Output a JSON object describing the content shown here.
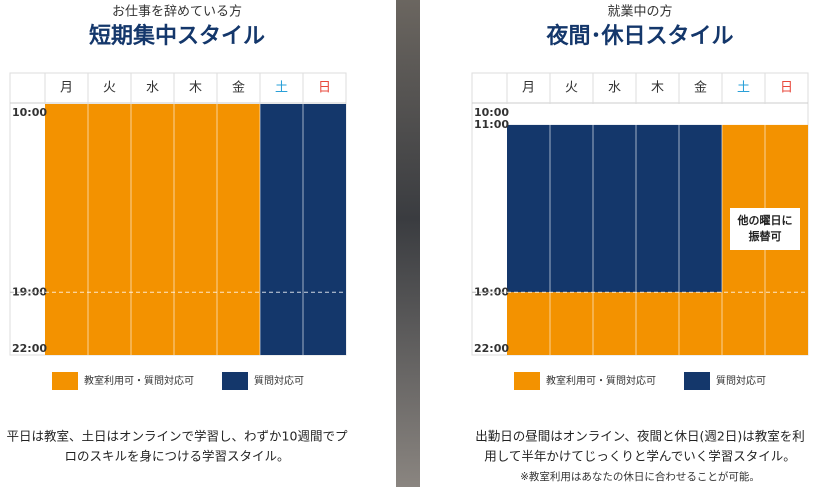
{
  "legend": [
    {
      "label": "教室利用可・質問対応可",
      "color": "#f39200"
    },
    {
      "label": "質問対応可",
      "color": "#14376b"
    }
  ],
  "panels": [
    {
      "subtitle": "お仕事を辞めている方",
      "title": "短期集中スタイル",
      "times": [
        "10:00",
        "19:00",
        "22:00"
      ],
      "dashed": "19:00",
      "columns": [
        {
          "day": "月",
          "segments": [
            {
              "from": "10:00",
              "to": "22:00",
              "type": 0
            }
          ]
        },
        {
          "day": "火",
          "segments": [
            {
              "from": "10:00",
              "to": "22:00",
              "type": 0
            }
          ]
        },
        {
          "day": "水",
          "segments": [
            {
              "from": "10:00",
              "to": "22:00",
              "type": 0
            }
          ]
        },
        {
          "day": "木",
          "segments": [
            {
              "from": "10:00",
              "to": "22:00",
              "type": 0
            }
          ]
        },
        {
          "day": "金",
          "segments": [
            {
              "from": "10:00",
              "to": "22:00",
              "type": 0
            }
          ]
        },
        {
          "day": "土",
          "color": "#2aa0d8",
          "segments": [
            {
              "from": "10:00",
              "to": "22:00",
              "type": 1
            }
          ]
        },
        {
          "day": "日",
          "color": "#e8483c",
          "segments": [
            {
              "from": "10:00",
              "to": "22:00",
              "type": 1
            }
          ]
        }
      ],
      "description": [
        "平日は教室、土日はオンラインで学習し、わずか10週間でプ",
        "ロのスキルを身につける学習スタイル。"
      ]
    },
    {
      "subtitle": "就業中の方",
      "title": "夜間･休日スタイル",
      "times": [
        "10:00",
        "11:00",
        "19:00",
        "22:00"
      ],
      "dashed": "19:00",
      "columns": [
        {
          "day": "月",
          "segments": [
            {
              "from": "11:00",
              "to": "19:00",
              "type": 1
            },
            {
              "from": "19:00",
              "to": "22:00",
              "type": 0
            }
          ]
        },
        {
          "day": "火",
          "segments": [
            {
              "from": "11:00",
              "to": "19:00",
              "type": 1
            },
            {
              "from": "19:00",
              "to": "22:00",
              "type": 0
            }
          ]
        },
        {
          "day": "水",
          "segments": [
            {
              "from": "11:00",
              "to": "19:00",
              "type": 1
            },
            {
              "from": "19:00",
              "to": "22:00",
              "type": 0
            }
          ]
        },
        {
          "day": "木",
          "segments": [
            {
              "from": "11:00",
              "to": "19:00",
              "type": 1
            },
            {
              "from": "19:00",
              "to": "22:00",
              "type": 0
            }
          ]
        },
        {
          "day": "金",
          "segments": [
            {
              "from": "11:00",
              "to": "19:00",
              "type": 1
            },
            {
              "from": "19:00",
              "to": "22:00",
              "type": 0
            }
          ]
        },
        {
          "day": "土",
          "color": "#2aa0d8",
          "segments": [
            {
              "from": "11:00",
              "to": "22:00",
              "type": 0
            }
          ]
        },
        {
          "day": "日",
          "color": "#e8483c",
          "segments": [
            {
              "from": "11:00",
              "to": "22:00",
              "type": 0
            }
          ]
        }
      ],
      "note": [
        "他の曜日に",
        "振替可"
      ],
      "description": [
        "出勤日の昼間はオンライン、夜間と休日(週2日)は教室を利",
        "用して半年かけてじっくりと学んでいく学習スタイル。"
      ],
      "footnote": "※教室利用はあなたの休日に合わせることが可能。"
    }
  ]
}
